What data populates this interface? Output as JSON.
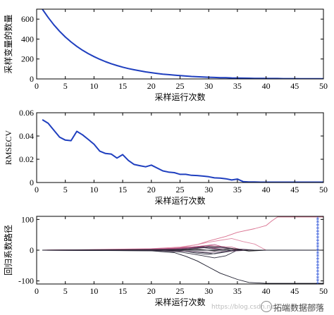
{
  "chart_data": [
    {
      "type": "line",
      "xlabel": "采样运行次数",
      "ylabel": "采样变量的数量",
      "xlim": [
        0,
        50
      ],
      "ylim": [
        0,
        700
      ],
      "xticks": [
        "0",
        "5",
        "10",
        "15",
        "20",
        "25",
        "30",
        "35",
        "40",
        "45",
        "50"
      ],
      "yticks": [
        "0",
        "200",
        "400",
        "600"
      ],
      "grid": false,
      "series": [
        {
          "color": "#1f3fbf",
          "x": [
            1,
            2,
            3,
            4,
            5,
            6,
            7,
            8,
            9,
            10,
            11,
            12,
            13,
            14,
            15,
            16,
            17,
            18,
            19,
            20,
            21,
            22,
            23,
            24,
            25,
            26,
            27,
            28,
            29,
            30,
            31,
            32,
            33,
            34,
            35,
            36,
            37,
            38,
            39,
            40,
            41,
            42,
            43,
            44,
            45,
            46,
            47,
            48,
            49,
            50
          ],
          "y": [
            700,
            617,
            543,
            478,
            421,
            371,
            327,
            288,
            254,
            224,
            197,
            173,
            153,
            134,
            118,
            104,
            92,
            81,
            71,
            63,
            55,
            48,
            43,
            38,
            33,
            29,
            25,
            22,
            20,
            17,
            15,
            13,
            12,
            10,
            9,
            8,
            7,
            6,
            5,
            5,
            4,
            4,
            3,
            3,
            3,
            2,
            2,
            2,
            2,
            2
          ]
        }
      ]
    },
    {
      "type": "line",
      "xlabel": "采样运行次数",
      "ylabel": "RMSECV",
      "xlim": [
        0,
        50
      ],
      "ylim": [
        0,
        0.06
      ],
      "xticks": [
        "0",
        "5",
        "10",
        "15",
        "20",
        "25",
        "30",
        "35",
        "40",
        "45",
        "50"
      ],
      "yticks": [
        "0",
        "0.02",
        "0.04",
        "0.06"
      ],
      "grid": false,
      "series": [
        {
          "color": "#1f3fbf",
          "x": [
            1,
            2,
            3,
            4,
            5,
            6,
            7,
            8,
            9,
            10,
            11,
            12,
            13,
            14,
            15,
            16,
            17,
            18,
            19,
            20,
            21,
            22,
            23,
            24,
            25,
            26,
            27,
            28,
            29,
            30,
            31,
            32,
            33,
            34,
            35,
            36,
            37,
            38,
            39,
            40,
            41,
            42,
            43,
            44,
            45,
            46,
            47,
            48,
            49,
            50
          ],
          "y": [
            0.054,
            0.051,
            0.045,
            0.039,
            0.0365,
            0.036,
            0.044,
            0.041,
            0.037,
            0.033,
            0.027,
            0.025,
            0.0245,
            0.021,
            0.024,
            0.019,
            0.0155,
            0.0145,
            0.0135,
            0.015,
            0.0125,
            0.01,
            0.009,
            0.0085,
            0.007,
            0.007,
            0.0062,
            0.006,
            0.0055,
            0.005,
            0.004,
            0.0038,
            0.0032,
            0.0022,
            0.003,
            0.0008,
            0.0005,
            0.0004,
            0.0003,
            0.0003,
            0.0003,
            0.0003,
            0.0003,
            0.0003,
            0.0003,
            0.0003,
            0.0003,
            0.0003,
            0.0003,
            0.0003
          ]
        }
      ]
    },
    {
      "type": "line",
      "xlabel": "采样运行次数",
      "ylabel": "回归系数路径",
      "xlim": [
        0,
        50
      ],
      "ylim": [
        -110,
        110
      ],
      "xticks": [
        "0",
        "5",
        "10",
        "15",
        "20",
        "25",
        "30",
        "35",
        "40",
        "45",
        "50"
      ],
      "yticks": [
        "-100",
        "0",
        "100"
      ],
      "grid": false,
      "marker_line": {
        "x": 49,
        "color": "#4466dd",
        "marker": "asterisk",
        "y_range": [
          -110,
          110
        ]
      },
      "series": [
        {
          "color": "#d9708f",
          "x": [
            1,
            10,
            20,
            25,
            28,
            30,
            33,
            35,
            38,
            40,
            41,
            42,
            45,
            50
          ],
          "y": [
            0,
            1,
            3,
            8,
            18,
            30,
            45,
            58,
            70,
            80,
            95,
            108,
            108,
            108
          ]
        },
        {
          "color": "#e08aa5",
          "x": [
            1,
            10,
            20,
            25,
            28,
            30,
            32,
            34,
            36,
            38,
            40
          ],
          "y": [
            0,
            2,
            5,
            10,
            18,
            26,
            32,
            38,
            28,
            20,
            0
          ]
        },
        {
          "color": "#c86a8a",
          "x": [
            1,
            15,
            22,
            26,
            28,
            30,
            32,
            34,
            36
          ],
          "y": [
            0,
            2,
            4,
            8,
            12,
            15,
            12,
            10,
            0
          ]
        },
        {
          "color": "#b05080",
          "x": [
            1,
            18,
            24,
            27,
            29,
            31,
            33,
            35
          ],
          "y": [
            0,
            3,
            6,
            10,
            14,
            18,
            8,
            0
          ]
        },
        {
          "color": "#9a4070",
          "x": [
            1,
            20,
            25,
            27,
            29,
            31,
            33
          ],
          "y": [
            0,
            2,
            5,
            8,
            12,
            6,
            0
          ]
        },
        {
          "color": "#1a1a2a",
          "x": [
            1,
            20,
            24,
            26,
            28,
            30,
            32,
            35,
            37,
            40,
            45,
            50
          ],
          "y": [
            0,
            -2,
            -8,
            -20,
            -35,
            -55,
            -75,
            -95,
            -105,
            -108,
            -108,
            -108
          ]
        },
        {
          "color": "#2a2a3a",
          "x": [
            1,
            22,
            25,
            27,
            29,
            31,
            33,
            35
          ],
          "y": [
            0,
            -2,
            -6,
            -12,
            -18,
            -25,
            -18,
            0
          ]
        },
        {
          "color": "#222233",
          "x": [
            1,
            22,
            26,
            28,
            30,
            32,
            34,
            36
          ],
          "y": [
            0,
            1,
            4,
            8,
            12,
            10,
            6,
            0
          ]
        },
        {
          "color": "#333344",
          "x": [
            1,
            23,
            26,
            28,
            30,
            32,
            34
          ],
          "y": [
            0,
            -1,
            -4,
            -10,
            -14,
            -8,
            0
          ]
        },
        {
          "color": "#444455",
          "x": [
            1,
            24,
            27,
            29,
            31,
            33
          ],
          "y": [
            0,
            2,
            6,
            8,
            4,
            0
          ]
        },
        {
          "color": "#3a3a4a",
          "x": [
            1,
            24,
            27,
            29,
            31,
            33,
            35
          ],
          "y": [
            0,
            -1,
            -5,
            -8,
            -12,
            -6,
            0
          ]
        },
        {
          "color": "#5a3a5a",
          "x": [
            1,
            20,
            25,
            28,
            30,
            32,
            34,
            36,
            38
          ],
          "y": [
            0,
            1,
            3,
            6,
            9,
            7,
            5,
            3,
            0
          ]
        },
        {
          "color": "#6a4a6a",
          "x": [
            1,
            20,
            25,
            28,
            30,
            33,
            35,
            37
          ],
          "y": [
            0,
            -1,
            -3,
            -5,
            -7,
            -4,
            -2,
            0
          ]
        },
        {
          "color": "#2a2a2a",
          "x": [
            1,
            25,
            28,
            31,
            34,
            37,
            40
          ],
          "y": [
            0,
            1,
            3,
            -2,
            5,
            -3,
            0
          ]
        },
        {
          "color": "#151525",
          "x": [
            1,
            50
          ],
          "y": [
            0,
            0
          ]
        }
      ]
    }
  ],
  "watermark": {
    "text": "https://blog.csdn.net/qq_41832686",
    "brand": "拓端数据部落"
  }
}
